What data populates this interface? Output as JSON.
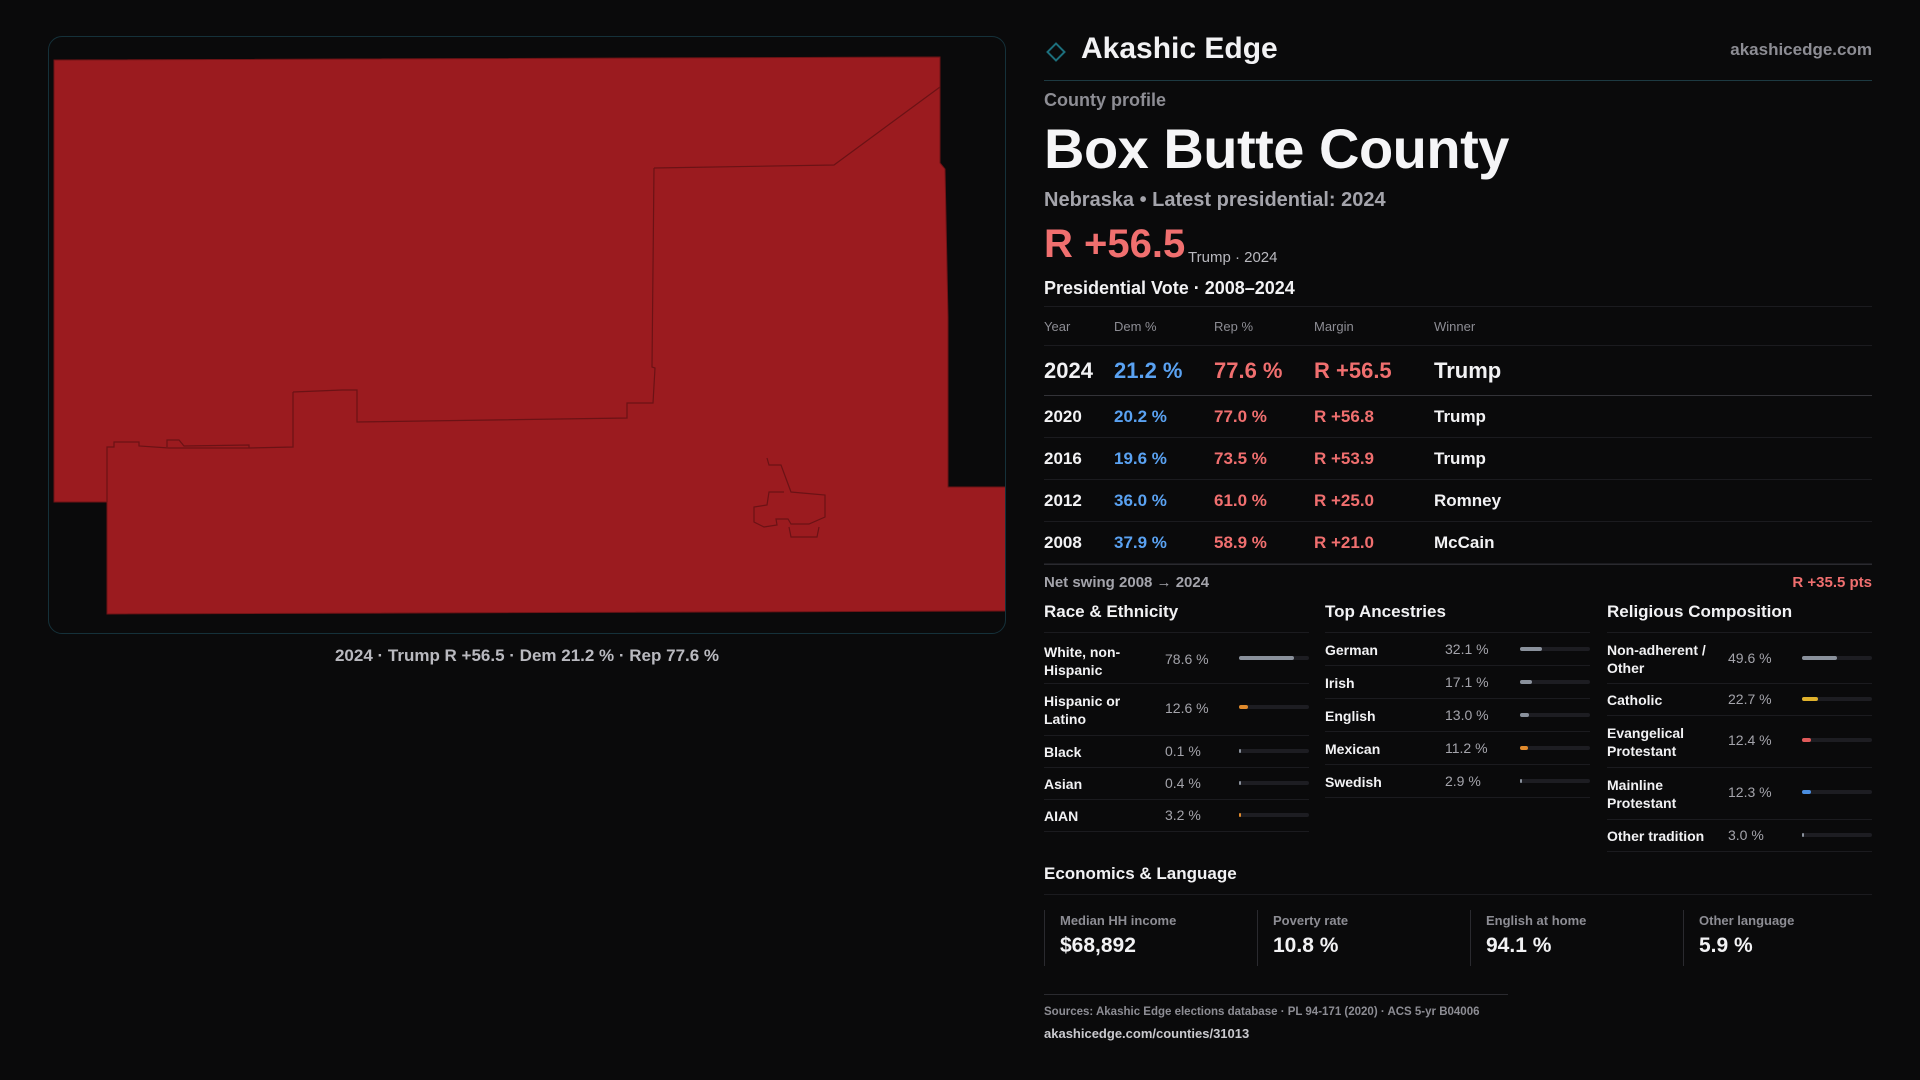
{
  "brand": {
    "name": "Akashic Edge",
    "domain": "akashicedge.com",
    "accent": "#1c6f7c"
  },
  "map": {
    "fill_color": "#9b1b1f",
    "caption": "2024 · Trump R +56.5 · Dem 21.2 % · Rep 77.6 %"
  },
  "profile": {
    "label": "County profile",
    "county": "Box Butte County",
    "subtitle": "Nebraska • Latest presidential: 2024",
    "margin": "R +56.5",
    "margin_note": "Trump · 2024"
  },
  "votes": {
    "title": "Presidential Vote · 2008–2024",
    "headers": [
      "Year",
      "Dem %",
      "Rep %",
      "Margin",
      "Winner"
    ],
    "rows": [
      {
        "year": "2024",
        "dem": "21.2 %",
        "rep": "77.6 %",
        "margin": "R +56.5",
        "winner": "Trump"
      },
      {
        "year": "2020",
        "dem": "20.2 %",
        "rep": "77.0 %",
        "margin": "R +56.8",
        "winner": "Trump"
      },
      {
        "year": "2016",
        "dem": "19.6 %",
        "rep": "73.5 %",
        "margin": "R +53.9",
        "winner": "Trump"
      },
      {
        "year": "2012",
        "dem": "36.0 %",
        "rep": "61.0 %",
        "margin": "R +25.0",
        "winner": "Romney"
      },
      {
        "year": "2008",
        "dem": "37.9 %",
        "rep": "58.9 %",
        "margin": "R +21.0",
        "winner": "McCain"
      }
    ],
    "colors": {
      "dem": "#5aa2f2",
      "rep": "#f06f6f"
    }
  },
  "swing": {
    "label": "Net swing 2008 → 2024",
    "value": "R +35.5 pts"
  },
  "race": {
    "title": "Race & Ethnicity",
    "items": [
      {
        "label": "White, non-Hispanic",
        "pct": "78.6 %",
        "value": 78.6,
        "color": "#8a919c"
      },
      {
        "label": "Hispanic or Latino",
        "pct": "12.6 %",
        "value": 12.6,
        "color": "#e08a2c"
      },
      {
        "label": "Black",
        "pct": "0.1 %",
        "value": 0.1,
        "color": "#8a919c"
      },
      {
        "label": "Asian",
        "pct": "0.4 %",
        "value": 0.4,
        "color": "#8a919c"
      },
      {
        "label": "AIAN",
        "pct": "3.2 %",
        "value": 3.2,
        "color": "#e08a2c"
      }
    ]
  },
  "ancestry": {
    "title": "Top Ancestries",
    "items": [
      {
        "label": "German",
        "pct": "32.1 %",
        "value": 32.1,
        "color": "#8a919c"
      },
      {
        "label": "Irish",
        "pct": "17.1 %",
        "value": 17.1,
        "color": "#8a919c"
      },
      {
        "label": "English",
        "pct": "13.0 %",
        "value": 13.0,
        "color": "#8a919c"
      },
      {
        "label": "Mexican",
        "pct": "11.2 %",
        "value": 11.2,
        "color": "#e08a2c"
      },
      {
        "label": "Swedish",
        "pct": "2.9 %",
        "value": 2.9,
        "color": "#8a919c"
      }
    ]
  },
  "religion": {
    "title": "Religious Composition",
    "items": [
      {
        "label": "Non-adherent / Other",
        "pct": "49.6 %",
        "value": 49.6,
        "color": "#8a919c"
      },
      {
        "label": "Catholic",
        "pct": "22.7 %",
        "value": 22.7,
        "color": "#e0b22c"
      },
      {
        "label": "Evangelical Protestant",
        "pct": "12.4 %",
        "value": 12.4,
        "color": "#e05a5a"
      },
      {
        "label": "Mainline Protestant",
        "pct": "12.3 %",
        "value": 12.3,
        "color": "#4a8ee0"
      },
      {
        "label": "Other tradition",
        "pct": "3.0 %",
        "value": 3.0,
        "color": "#8a919c"
      }
    ]
  },
  "economics": {
    "title": "Economics & Language",
    "cards": [
      {
        "label": "Median HH income",
        "value": "$68,892"
      },
      {
        "label": "Poverty rate",
        "value": "10.8 %"
      },
      {
        "label": "English at home",
        "value": "94.1 %"
      },
      {
        "label": "Other language",
        "value": "5.9 %"
      }
    ]
  },
  "footer": {
    "sources": "Sources: Akashic Edge elections database · PL 94-171 (2020) · ACS 5-yr B04006",
    "url": "akashicedge.com/counties/31013"
  }
}
